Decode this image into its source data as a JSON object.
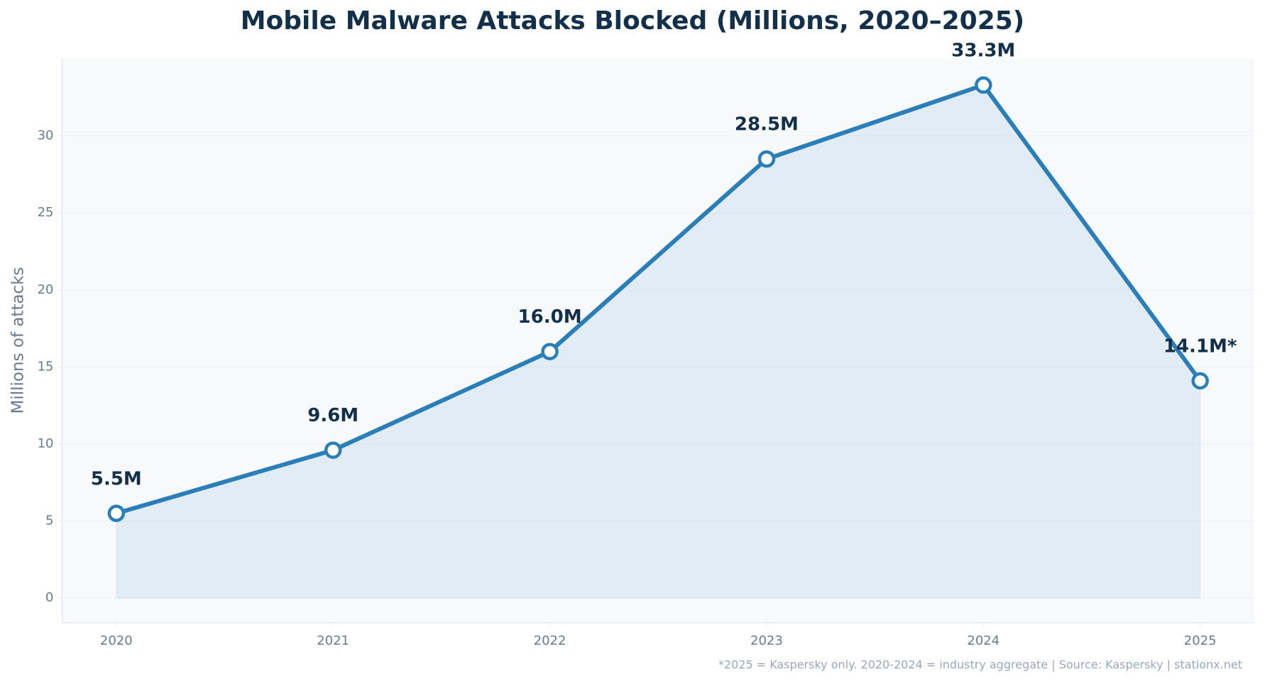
{
  "chart_data": {
    "type": "line",
    "title": "Mobile Malware Attacks Blocked (Millions, 2020–2025)",
    "y_label": "Millions of attacks",
    "footnote": "*2025 = Kaspersky only. 2020-2024 = industry aggregate | Source: Kaspersky | stationx.net",
    "x": [
      2020,
      2021,
      2022,
      2023,
      2024,
      2025
    ],
    "values": [
      5.5,
      9.6,
      16.0,
      28.5,
      33.3,
      14.1
    ],
    "value_labels": [
      "5.5M",
      "9.6M",
      "16.0M",
      "28.5M",
      "33.3M",
      "14.1M*"
    ],
    "color": "#2b7fb8",
    "fill": true,
    "xlim": [
      2019.75,
      2025.25
    ],
    "xticks": [
      2020,
      2021,
      2022,
      2023,
      2024,
      2025
    ],
    "ylim": [
      -1.6,
      35.0
    ],
    "yticks": [
      0,
      5,
      10,
      15,
      20,
      25,
      30
    ],
    "grid": true
  }
}
